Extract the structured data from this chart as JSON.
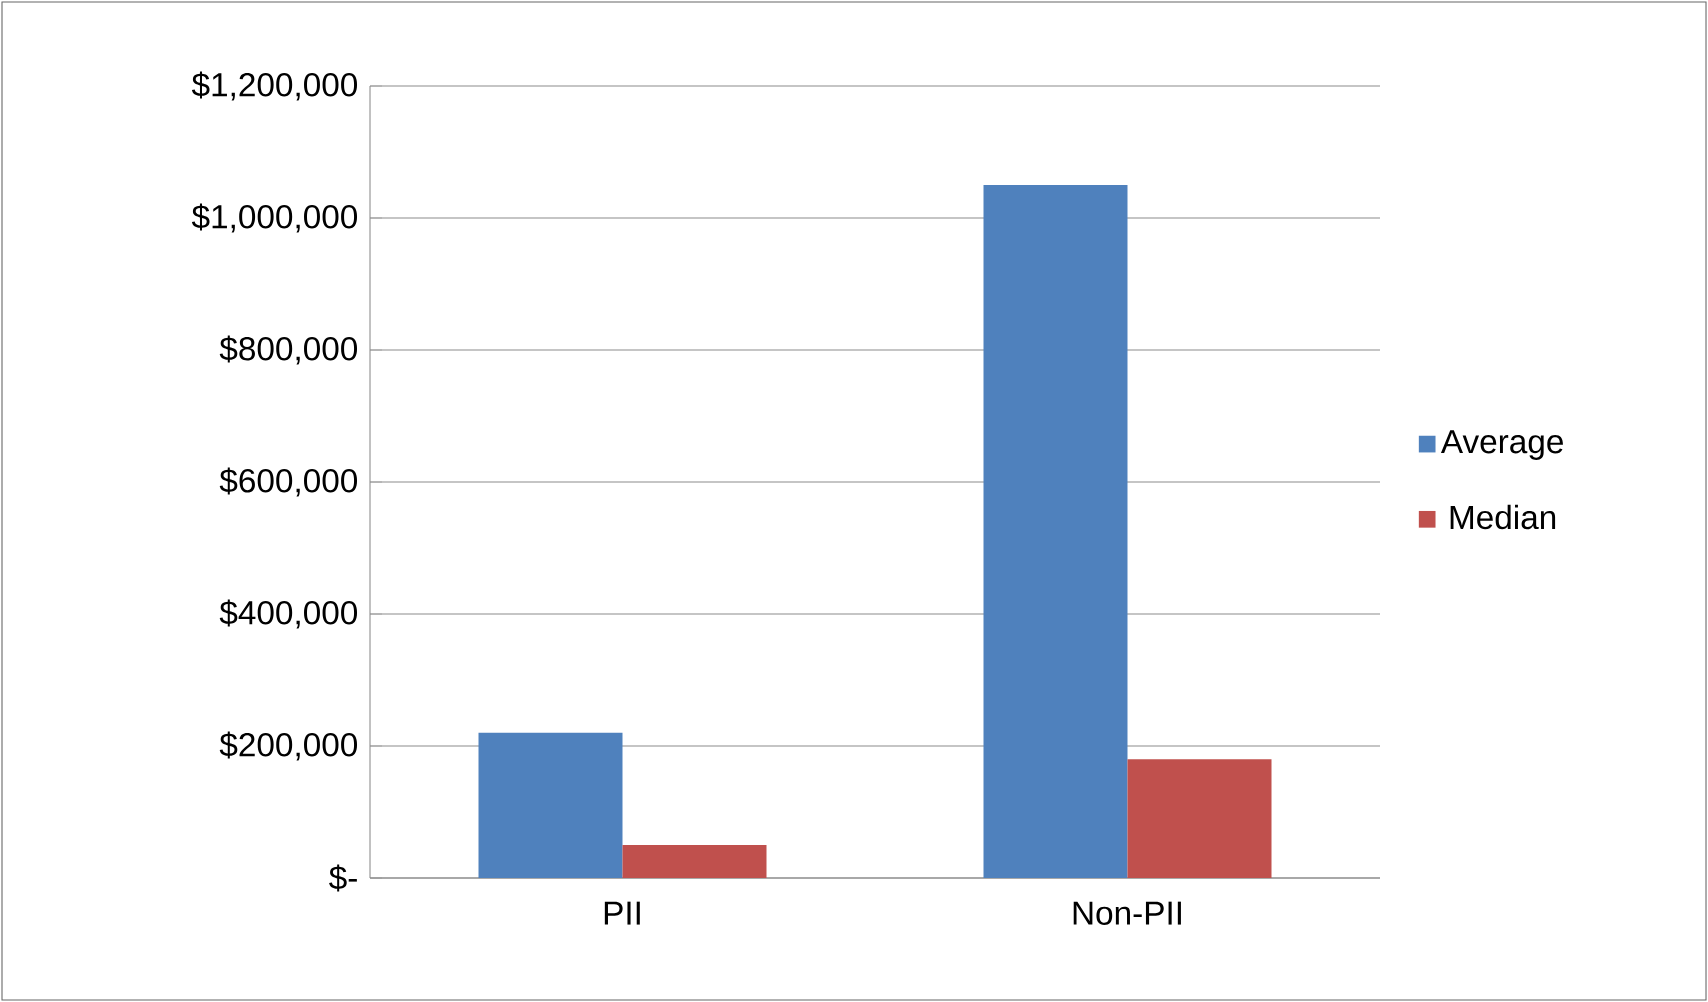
{
  "chart_data": {
    "type": "bar",
    "categories": [
      "PII",
      "Non-PII"
    ],
    "series": [
      {
        "name": "Average",
        "color": "#4f81bd",
        "values": [
          220000,
          1050000
        ]
      },
      {
        "name": "Median",
        "color": "#c0504d",
        "values": [
          50000,
          180000
        ]
      }
    ],
    "ylim": [
      0,
      1200000
    ],
    "yticks": [
      {
        "value": 0,
        "label": "$-"
      },
      {
        "value": 200000,
        "label": "$200,000"
      },
      {
        "value": 400000,
        "label": "$400,000"
      },
      {
        "value": 600000,
        "label": "$600,000"
      },
      {
        "value": 800000,
        "label": "$800,000"
      },
      {
        "value": 1000000,
        "label": "$1,000,000"
      },
      {
        "value": 1200000,
        "label": "$1,200,000"
      }
    ],
    "grid": "y",
    "legend": "right"
  }
}
